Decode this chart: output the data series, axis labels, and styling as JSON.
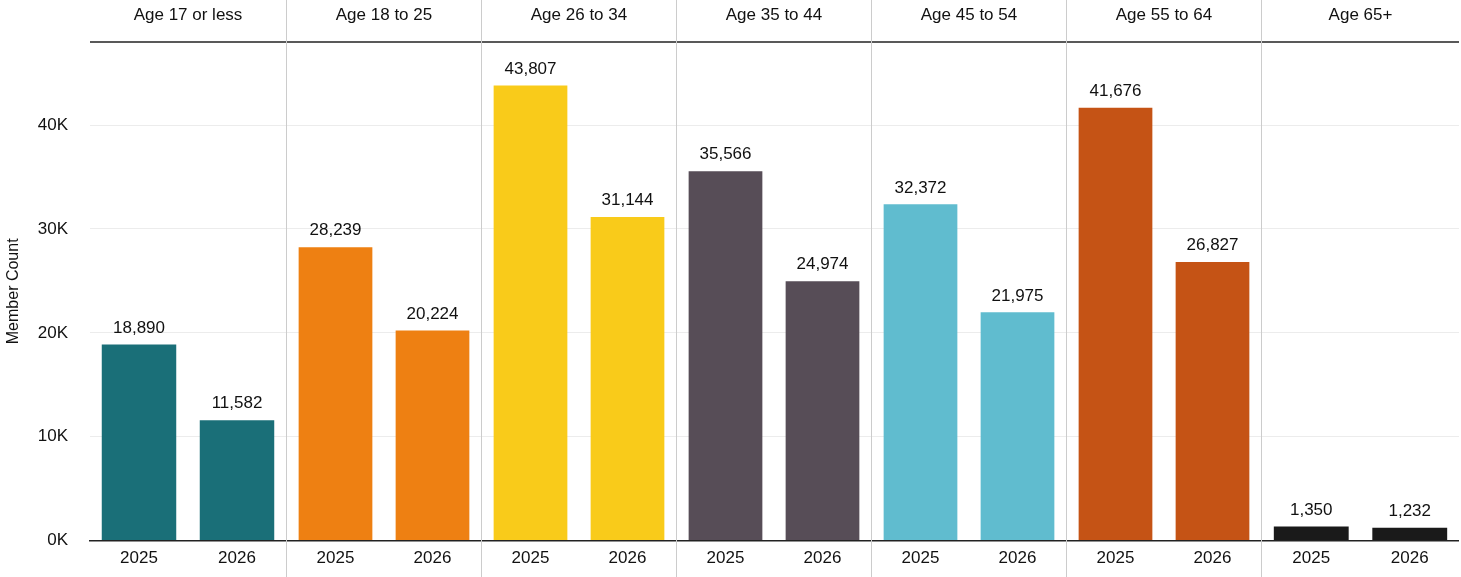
{
  "chart_data": [
    {
      "type": "bar",
      "title": "Age 17 or less",
      "ylabel": "Member Count",
      "categories": [
        "2025",
        "2026"
      ],
      "values": [
        18890,
        11582
      ],
      "value_labels": [
        "18,890",
        "11,582"
      ],
      "colors": [
        "#1a6f78",
        "#1a6f78"
      ],
      "ylim": [
        0,
        48000
      ],
      "yticks": [
        {
          "value": 0,
          "label": "0K"
        },
        {
          "value": 10000,
          "label": "10K"
        },
        {
          "value": 20000,
          "label": "20K"
        },
        {
          "value": 30000,
          "label": "30K"
        },
        {
          "value": 40000,
          "label": "40K"
        }
      ],
      "grid": "y"
    },
    {
      "type": "bar",
      "title": "Age 18 to 25",
      "categories": [
        "2025",
        "2026"
      ],
      "values": [
        28239,
        20224
      ],
      "value_labels": [
        "28,239",
        "20,224"
      ],
      "colors": [
        "#ee8012",
        "#ee8012"
      ],
      "ylim": [
        0,
        48000
      ],
      "yticks": [
        0,
        10000,
        20000,
        30000,
        40000
      ],
      "grid": "y",
      "tick_labels": "x"
    },
    {
      "type": "bar",
      "title": "Age 26 to 34",
      "categories": [
        "2025",
        "2026"
      ],
      "values": [
        43807,
        31144
      ],
      "value_labels": [
        "43,807",
        "31,144"
      ],
      "colors": [
        "#f9cb1a",
        "#f9cb1a"
      ],
      "ylim": [
        0,
        48000
      ],
      "yticks": [
        0,
        10000,
        20000,
        30000,
        40000
      ],
      "grid": "y",
      "tick_labels": "x"
    },
    {
      "type": "bar",
      "title": "Age 35 to 44",
      "categories": [
        "2025",
        "2026"
      ],
      "values": [
        35566,
        24974
      ],
      "value_labels": [
        "35,566",
        "24,974"
      ],
      "colors": [
        "#574d57",
        "#574d57"
      ],
      "ylim": [
        0,
        48000
      ],
      "yticks": [
        0,
        10000,
        20000,
        30000,
        40000
      ],
      "grid": "y",
      "tick_labels": "x"
    },
    {
      "type": "bar",
      "title": "Age 45 to 54",
      "categories": [
        "2025",
        "2026"
      ],
      "values": [
        32372,
        21975
      ],
      "value_labels": [
        "32,372",
        "21,975"
      ],
      "colors": [
        "#60bccf",
        "#60bccf"
      ],
      "ylim": [
        0,
        48000
      ],
      "yticks": [
        0,
        10000,
        20000,
        30000,
        40000
      ],
      "grid": "y",
      "tick_labels": "x"
    },
    {
      "type": "bar",
      "title": "Age 55 to 64",
      "categories": [
        "2025",
        "2026"
      ],
      "values": [
        41676,
        26827
      ],
      "value_labels": [
        "41,676",
        "26,827"
      ],
      "colors": [
        "#c55315",
        "#c55315"
      ],
      "ylim": [
        0,
        48000
      ],
      "yticks": [
        0,
        10000,
        20000,
        30000,
        40000
      ],
      "grid": "y",
      "tick_labels": "x"
    },
    {
      "type": "bar",
      "title": "Age 65+",
      "categories": [
        "2025",
        "2026"
      ],
      "values": [
        1350,
        1232
      ],
      "value_labels": [
        "1,350",
        "1,232"
      ],
      "colors": [
        "#1a1a1a",
        "#1a1a1a"
      ],
      "ylim": [
        0,
        48000
      ],
      "yticks": [
        0,
        10000,
        20000,
        30000,
        40000
      ],
      "grid": "y",
      "tick_labels": "x"
    }
  ]
}
